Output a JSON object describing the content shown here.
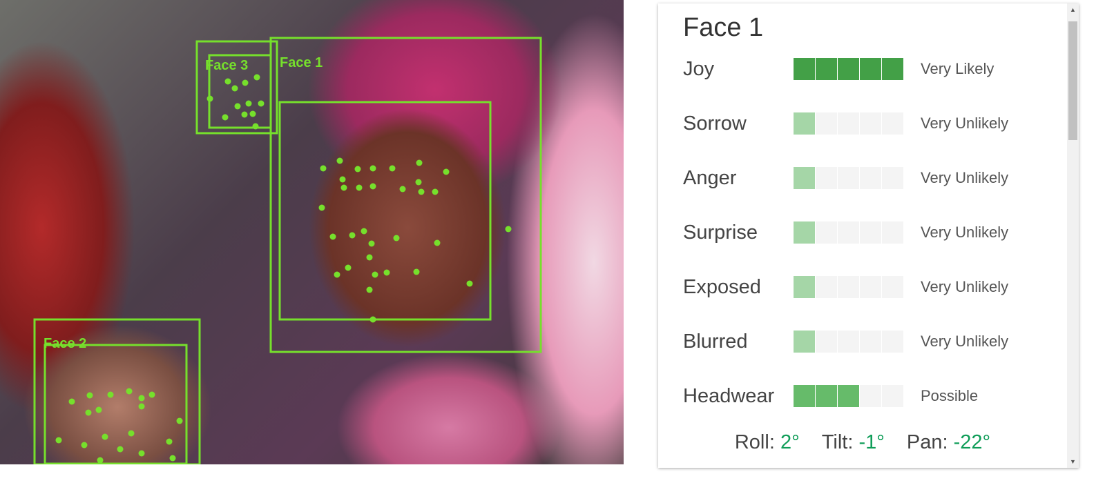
{
  "photo": {
    "faces": [
      {
        "label": "Face 1"
      },
      {
        "label": "Face 2"
      },
      {
        "label": "Face 3"
      }
    ],
    "box_color": "#76e02c"
  },
  "panel": {
    "title": "Face 1",
    "attributes": [
      {
        "label": "Joy",
        "value": "Very Likely",
        "level": 5,
        "color": "#43a047"
      },
      {
        "label": "Sorrow",
        "value": "Very Unlikely",
        "level": 1,
        "color": "#a5d6a7"
      },
      {
        "label": "Anger",
        "value": "Very Unlikely",
        "level": 1,
        "color": "#a5d6a7"
      },
      {
        "label": "Surprise",
        "value": "Very Unlikely",
        "level": 1,
        "color": "#a5d6a7"
      },
      {
        "label": "Exposed",
        "value": "Very Unlikely",
        "level": 1,
        "color": "#a5d6a7"
      },
      {
        "label": "Blurred",
        "value": "Very Unlikely",
        "level": 1,
        "color": "#a5d6a7"
      },
      {
        "label": "Headwear",
        "value": "Possible",
        "level": 3,
        "color": "#66bb6a"
      }
    ],
    "angles": {
      "roll_label": "Roll:",
      "roll": "2°",
      "tilt_label": "Tilt:",
      "tilt": "-1°",
      "pan_label": "Pan:",
      "pan": "-22°"
    },
    "accent": "#0f9d58"
  }
}
